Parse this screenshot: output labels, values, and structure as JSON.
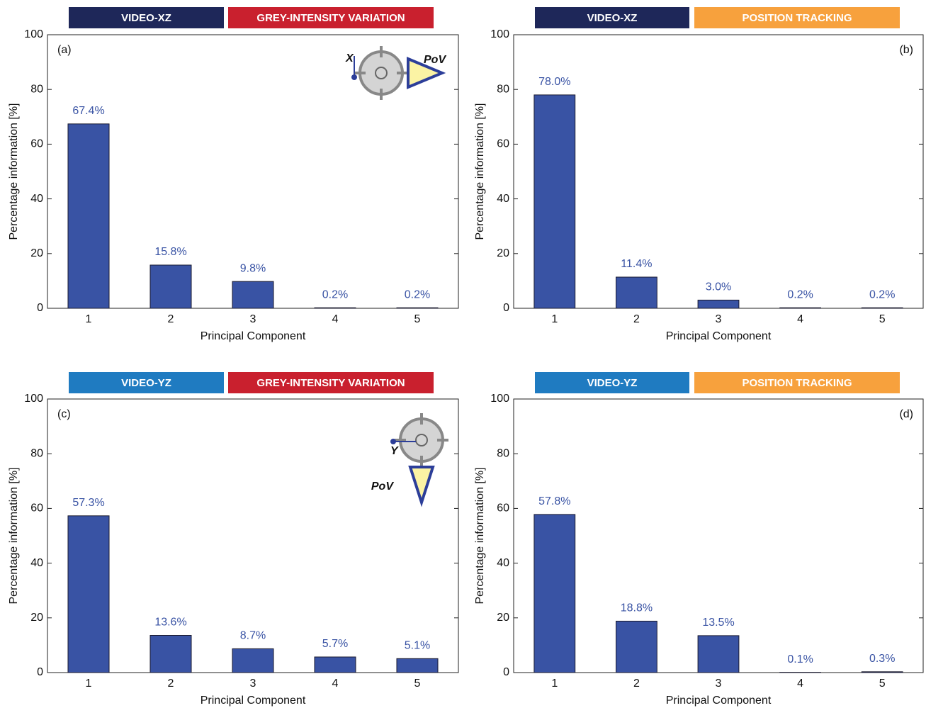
{
  "chart_data": [
    {
      "type": "bar",
      "banners": [
        {
          "text": "VIDEO-XZ",
          "color": "#1e2759"
        },
        {
          "text": "GREY-INTENSITY VARIATION",
          "color": "#c9202e"
        }
      ],
      "panel_label": "(a)",
      "xlabel": "Principal Component",
      "ylabel": "Percentage information [%]",
      "categories": [
        "1",
        "2",
        "3",
        "4",
        "5"
      ],
      "values": [
        67.4,
        15.8,
        9.8,
        0.2,
        0.2
      ],
      "value_labels": [
        "67.4%",
        "15.8%",
        "9.8%",
        "0.2%",
        "0.2%"
      ],
      "color": "#3953a4",
      "ylim": [
        0,
        100
      ],
      "yticks": [
        0,
        20,
        40,
        60,
        80,
        100
      ],
      "icon": {
        "axis_label": "X",
        "pov_label": "PoV",
        "view": "side"
      }
    },
    {
      "type": "bar",
      "banners": [
        {
          "text": "VIDEO-XZ",
          "color": "#1e2759"
        },
        {
          "text": "POSITION TRACKING",
          "color": "#f7a13d"
        }
      ],
      "panel_label": "(b)",
      "xlabel": "Principal Component",
      "ylabel": "Percentage information [%]",
      "categories": [
        "1",
        "2",
        "3",
        "4",
        "5"
      ],
      "values": [
        78.0,
        11.4,
        3.0,
        0.2,
        0.2
      ],
      "value_labels": [
        "78.0%",
        "11.4%",
        "3.0%",
        "0.2%",
        "0.2%"
      ],
      "color": "#3953a4",
      "ylim": [
        0,
        100
      ],
      "yticks": [
        0,
        20,
        40,
        60,
        80,
        100
      ]
    },
    {
      "type": "bar",
      "banners": [
        {
          "text": "VIDEO-YZ",
          "color": "#1f7bc1"
        },
        {
          "text": "GREY-INTENSITY VARIATION",
          "color": "#c9202e"
        }
      ],
      "panel_label": "(c)",
      "xlabel": "Principal Component",
      "ylabel": "Percentage information [%]",
      "categories": [
        "1",
        "2",
        "3",
        "4",
        "5"
      ],
      "values": [
        57.3,
        13.6,
        8.7,
        5.7,
        5.1
      ],
      "value_labels": [
        "57.3%",
        "13.6%",
        "8.7%",
        "5.7%",
        "5.1%"
      ],
      "color": "#3953a4",
      "ylim": [
        0,
        100
      ],
      "yticks": [
        0,
        20,
        40,
        60,
        80,
        100
      ],
      "icon": {
        "axis_label": "Y",
        "pov_label": "PoV",
        "view": "down"
      }
    },
    {
      "type": "bar",
      "banners": [
        {
          "text": "VIDEO-YZ",
          "color": "#1f7bc1"
        },
        {
          "text": "POSITION TRACKING",
          "color": "#f7a13d"
        }
      ],
      "panel_label": "(d)",
      "xlabel": "Principal Component",
      "ylabel": "Percentage information [%]",
      "categories": [
        "1",
        "2",
        "3",
        "4",
        "5"
      ],
      "values": [
        57.8,
        18.8,
        13.5,
        0.1,
        0.3
      ],
      "value_labels": [
        "57.8%",
        "18.8%",
        "13.5%",
        "0.1%",
        "0.3%"
      ],
      "color": "#3953a4",
      "ylim": [
        0,
        100
      ],
      "yticks": [
        0,
        20,
        40,
        60,
        80,
        100
      ]
    }
  ]
}
